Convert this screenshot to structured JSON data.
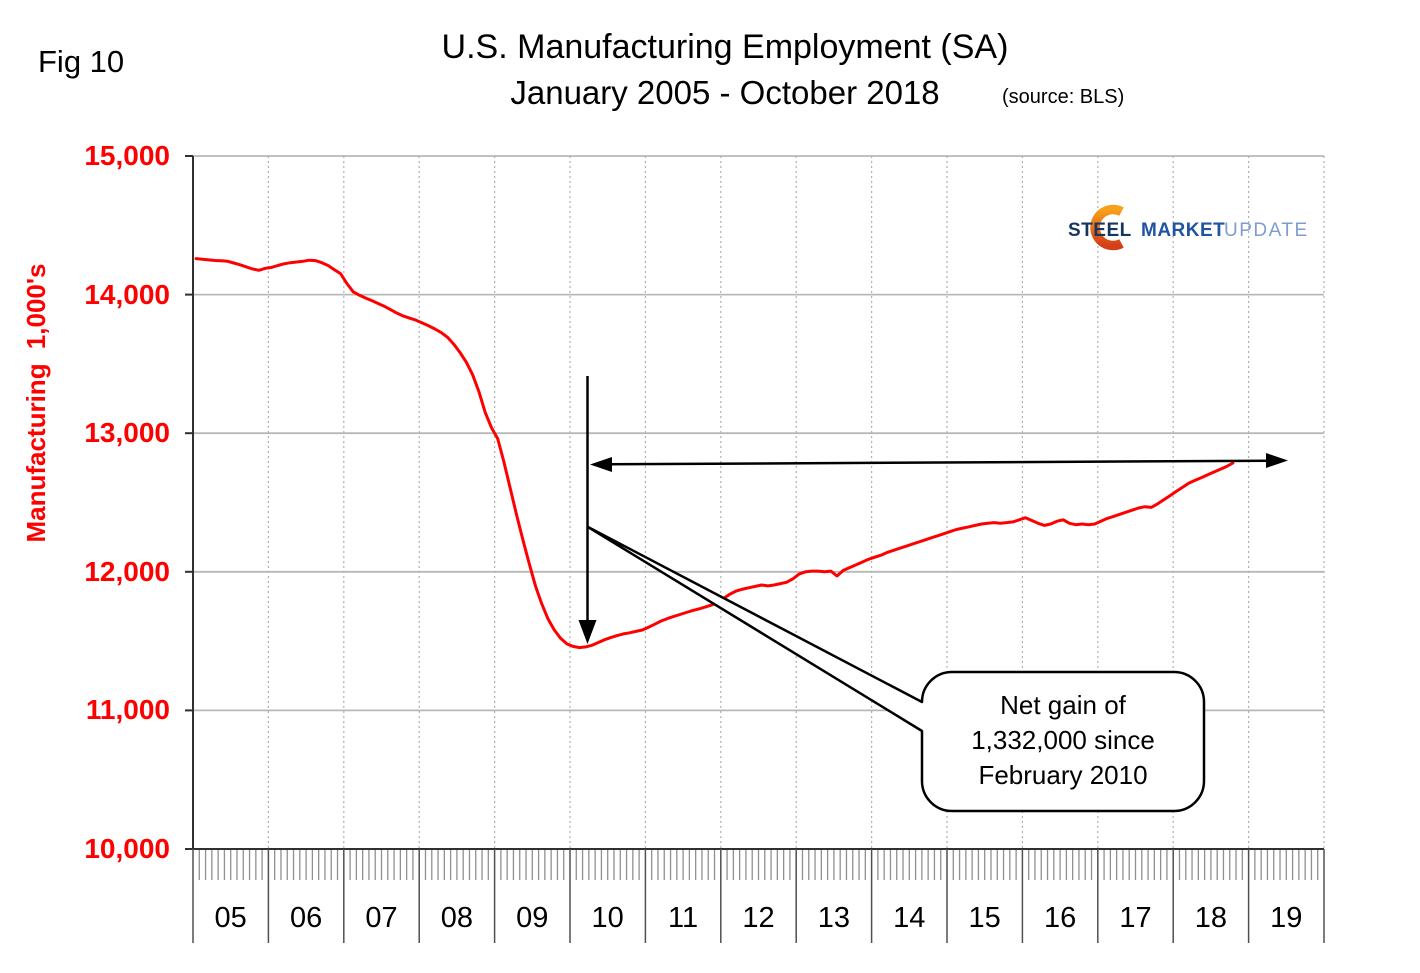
{
  "figure_label": "Fig 10",
  "title": {
    "line1": "U.S. Manufacturing Employment (SA)",
    "line2": "January 2005 - October 2018",
    "source_note": "(source: BLS)"
  },
  "logo": {
    "word1": "STEEL",
    "word2": "MARKET",
    "word3": "UPDATE"
  },
  "y_axis_title": "Manufacturing 1,000's",
  "annotation": {
    "callout_lines": [
      "Net gain of",
      "1,332,000 since",
      "February 2010"
    ]
  },
  "colors": {
    "line": "#ff0000",
    "axis_red": "#ff0000",
    "gridline": "#b8b8b8",
    "dashed_gridline": "#b0b0b0",
    "axis_line": "#303030",
    "minor_tick": "#909090",
    "year_separator": "#505050",
    "annotation_black": "#000000",
    "logo_orange_top": "#f9a01b",
    "logo_orange_bottom": "#d43f17",
    "logo_steel_blue": "#17365d",
    "logo_market_blue": "#2053a4",
    "logo_update_blue": "#7f9cd0"
  },
  "chart_data": {
    "type": "line",
    "title": "U.S. Manufacturing Employment (SA) January 2005 - October 2018 (source: BLS)",
    "xlabel": "",
    "ylabel": "Manufacturing 1,000's",
    "frequency": "monthly",
    "x_start": "2005-01",
    "x_end": "2018-10",
    "ylim": [
      10000,
      15000
    ],
    "y_tick_step": 1000,
    "y_tick_labels": [
      "15,000",
      "14,000",
      "13,000",
      "12,000",
      "11,000",
      "10,000"
    ],
    "x_tick_labels": [
      "05",
      "06",
      "07",
      "08",
      "09",
      "10",
      "11",
      "12",
      "13",
      "14",
      "15",
      "16",
      "17",
      "18",
      "19"
    ],
    "grid": true,
    "legend": false,
    "series": [
      {
        "name": "U.S. manufacturing employment (thousands, seasonally adjusted)",
        "color": "#ff0000",
        "values": [
          14260,
          14255,
          14250,
          14246,
          14244,
          14240,
          14228,
          14215,
          14200,
          14185,
          14175,
          14190,
          14196,
          14210,
          14222,
          14230,
          14235,
          14240,
          14248,
          14245,
          14230,
          14210,
          14180,
          14150,
          14080,
          14020,
          13995,
          13975,
          13955,
          13935,
          13915,
          13890,
          13865,
          13845,
          13830,
          13815,
          13795,
          13775,
          13752,
          13726,
          13692,
          13642,
          13582,
          13512,
          13422,
          13300,
          13150,
          13040,
          12960,
          12790,
          12600,
          12410,
          12230,
          12060,
          11900,
          11770,
          11660,
          11580,
          11520,
          11480,
          11462,
          11453,
          11458,
          11470,
          11490,
          11510,
          11525,
          11540,
          11552,
          11560,
          11570,
          11580,
          11600,
          11622,
          11645,
          11662,
          11678,
          11692,
          11706,
          11720,
          11732,
          11745,
          11760,
          11780,
          11810,
          11840,
          11862,
          11875,
          11885,
          11895,
          11905,
          11898,
          11905,
          11915,
          11925,
          11950,
          11985,
          12000,
          12005,
          12005,
          12000,
          12005,
          11970,
          12010,
          12030,
          12050,
          12070,
          12090,
          12105,
          12120,
          12140,
          12155,
          12170,
          12185,
          12200,
          12215,
          12230,
          12245,
          12260,
          12275,
          12290,
          12305,
          12315,
          12325,
          12335,
          12345,
          12350,
          12355,
          12350,
          12355,
          12360,
          12375,
          12390,
          12370,
          12350,
          12335,
          12345,
          12365,
          12375,
          12350,
          12340,
          12345,
          12340,
          12345,
          12365,
          12385,
          12400,
          12415,
          12430,
          12445,
          12460,
          12470,
          12465,
          12490,
          12520,
          12550,
          12580,
          12610,
          12640,
          12660,
          12680,
          12700,
          12720,
          12740,
          12760,
          12785
        ]
      }
    ],
    "annotations": {
      "trough": {
        "date": "2010-02",
        "value": 11453
      },
      "latest": {
        "date": "2018-10",
        "value": 12785
      },
      "callout_text": "Net gain of 1,332,000 since February 2010"
    }
  }
}
